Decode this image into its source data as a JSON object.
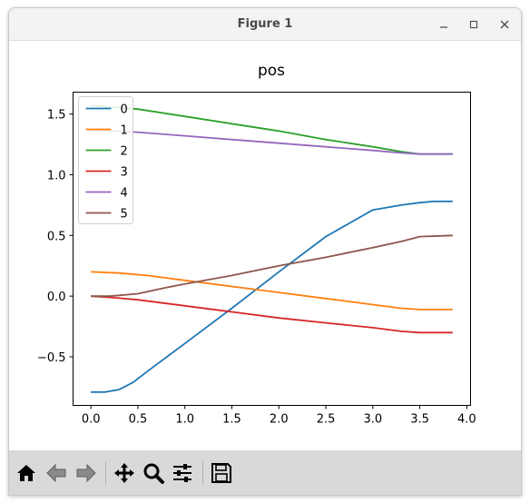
{
  "window": {
    "title": "Figure 1",
    "controls": {
      "minimize": "–",
      "maximize": "□",
      "close": "✕"
    }
  },
  "toolbar": {
    "buttons": [
      {
        "name": "home",
        "icon": "home-icon"
      },
      {
        "name": "back",
        "icon": "back-arrow-icon"
      },
      {
        "name": "forward",
        "icon": "forward-arrow-icon"
      },
      {
        "name": "pan",
        "icon": "move-icon"
      },
      {
        "name": "zoom",
        "icon": "zoom-icon"
      },
      {
        "name": "configure",
        "icon": "sliders-icon"
      },
      {
        "name": "save",
        "icon": "save-icon"
      }
    ]
  },
  "chart_data": {
    "type": "line",
    "title": "pos",
    "xlabel": "",
    "ylabel": "",
    "xlim": [
      -0.19,
      4.04
    ],
    "ylim": [
      -0.9,
      1.68
    ],
    "xticks": [
      "0.0",
      "0.5",
      "1.0",
      "1.5",
      "2.0",
      "2.5",
      "3.0",
      "3.5",
      "4.0"
    ],
    "xtick_values": [
      0,
      0.5,
      1,
      1.5,
      2,
      2.5,
      3,
      3.5,
      4
    ],
    "yticks": [
      "−0.5",
      "0.0",
      "0.5",
      "1.0",
      "1.5"
    ],
    "ytick_values": [
      -0.5,
      0,
      0.5,
      1,
      1.5
    ],
    "legend": {
      "placement": "top-left"
    },
    "grid": false,
    "series": [
      {
        "name": "0",
        "color": "#1f77b4",
        "x": [
          0,
          0.15,
          0.3,
          0.45,
          0.6,
          1.0,
          1.5,
          2.0,
          2.5,
          3.0,
          3.3,
          3.5,
          3.65,
          3.85
        ],
        "y": [
          -0.79,
          -0.79,
          -0.77,
          -0.71,
          -0.62,
          -0.39,
          -0.1,
          0.2,
          0.49,
          0.71,
          0.75,
          0.77,
          0.78,
          0.78
        ]
      },
      {
        "name": "1",
        "color": "#ff7f0e",
        "x": [
          0,
          0.3,
          0.6,
          1.0,
          1.5,
          2.0,
          2.5,
          3.0,
          3.3,
          3.5,
          3.85
        ],
        "y": [
          0.2,
          0.19,
          0.17,
          0.13,
          0.08,
          0.03,
          -0.02,
          -0.07,
          -0.1,
          -0.11,
          -0.11
        ]
      },
      {
        "name": "2",
        "color": "#2ca02c",
        "x": [
          0,
          0.5,
          1.0,
          1.5,
          2.0,
          2.5,
          3.0,
          3.3,
          3.5,
          3.85
        ],
        "y": [
          1.57,
          1.54,
          1.48,
          1.42,
          1.36,
          1.29,
          1.23,
          1.19,
          1.17,
          1.17
        ]
      },
      {
        "name": "3",
        "color": "#d62728",
        "x": [
          0,
          0.2,
          0.5,
          1.0,
          1.5,
          2.0,
          2.5,
          3.0,
          3.3,
          3.5,
          3.85
        ],
        "y": [
          0.0,
          -0.01,
          -0.03,
          -0.08,
          -0.13,
          -0.18,
          -0.22,
          -0.26,
          -0.29,
          -0.3,
          -0.3
        ]
      },
      {
        "name": "4",
        "color": "#9467bd",
        "x": [
          0,
          0.5,
          1.0,
          1.5,
          2.0,
          2.5,
          3.0,
          3.3,
          3.5,
          3.85
        ],
        "y": [
          1.37,
          1.35,
          1.32,
          1.29,
          1.26,
          1.23,
          1.2,
          1.18,
          1.17,
          1.17
        ]
      },
      {
        "name": "5",
        "color": "#8c564b",
        "x": [
          0,
          0.2,
          0.5,
          0.8,
          1.0,
          1.5,
          2.0,
          2.5,
          3.0,
          3.3,
          3.5,
          3.85
        ],
        "y": [
          0.0,
          0.0,
          0.02,
          0.07,
          0.1,
          0.17,
          0.25,
          0.32,
          0.4,
          0.45,
          0.49,
          0.5
        ]
      }
    ]
  }
}
